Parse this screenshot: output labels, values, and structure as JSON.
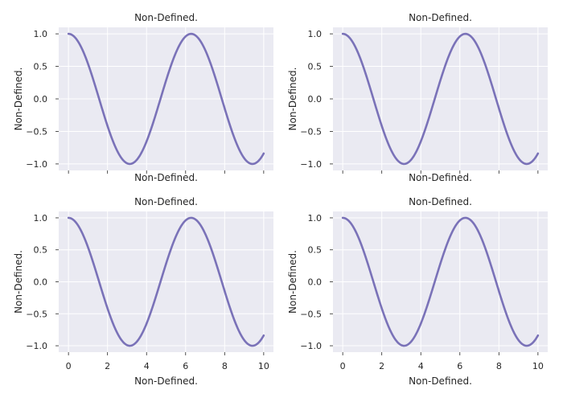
{
  "chart_data": [
    {
      "type": "line",
      "title": "Non-Defined.",
      "xlabel": "Non-Defined.",
      "ylabel": "Non-Defined.",
      "xlim": [
        -0.5,
        10.5
      ],
      "ylim": [
        -1.1,
        1.1
      ],
      "xticks": [
        0,
        2,
        4,
        6,
        8,
        10
      ],
      "yticks": [
        1.0,
        0.5,
        0.0,
        -0.5,
        -1.0
      ],
      "yticklabels": [
        "1.0",
        "0.5",
        "0.0",
        "−0.5",
        "−1.0"
      ],
      "show_xticklabels": false,
      "show_xlabel": true,
      "grid": true,
      "series": [
        {
          "function": "cos(x)",
          "x_range": [
            0,
            10
          ],
          "color": "#7A72B8",
          "x": [
            0,
            0.5,
            1,
            1.5,
            2,
            2.5,
            3,
            3.5,
            4,
            4.5,
            5,
            5.5,
            6,
            6.5,
            7,
            7.5,
            8,
            8.5,
            9,
            9.5,
            10
          ],
          "y": [
            1.0,
            0.878,
            0.54,
            0.071,
            -0.416,
            -0.801,
            -0.99,
            -0.936,
            -0.654,
            -0.211,
            0.284,
            0.709,
            0.96,
            0.977,
            0.754,
            0.347,
            -0.146,
            -0.602,
            -0.911,
            -0.997,
            -0.839
          ]
        }
      ]
    },
    {
      "type": "line",
      "title": "Non-Defined.",
      "xlabel": "Non-Defined.",
      "ylabel": "Non-Defined.",
      "xlim": [
        -0.5,
        10.5
      ],
      "ylim": [
        -1.1,
        1.1
      ],
      "xticks": [
        0,
        2,
        4,
        6,
        8,
        10
      ],
      "yticks": [
        1.0,
        0.5,
        0.0,
        -0.5,
        -1.0
      ],
      "yticklabels": [
        "1.0",
        "0.5",
        "0.0",
        "−0.5",
        "−1.0"
      ],
      "show_xticklabels": false,
      "show_xlabel": true,
      "grid": true,
      "series": [
        {
          "function": "cos(x)",
          "x_range": [
            0,
            10
          ],
          "color": "#7A72B8",
          "x": [
            0,
            0.5,
            1,
            1.5,
            2,
            2.5,
            3,
            3.5,
            4,
            4.5,
            5,
            5.5,
            6,
            6.5,
            7,
            7.5,
            8,
            8.5,
            9,
            9.5,
            10
          ],
          "y": [
            1.0,
            0.878,
            0.54,
            0.071,
            -0.416,
            -0.801,
            -0.99,
            -0.936,
            -0.654,
            -0.211,
            0.284,
            0.709,
            0.96,
            0.977,
            0.754,
            0.347,
            -0.146,
            -0.602,
            -0.911,
            -0.997,
            -0.839
          ]
        }
      ]
    },
    {
      "type": "line",
      "title": "Non-Defined.",
      "xlabel": "Non-Defined.",
      "ylabel": "Non-Defined.",
      "xlim": [
        -0.5,
        10.5
      ],
      "ylim": [
        -1.1,
        1.1
      ],
      "xticks": [
        0,
        2,
        4,
        6,
        8,
        10
      ],
      "xticklabels": [
        "0",
        "2",
        "4",
        "6",
        "8",
        "10"
      ],
      "yticks": [
        1.0,
        0.5,
        0.0,
        -0.5,
        -1.0
      ],
      "yticklabels": [
        "1.0",
        "0.5",
        "0.0",
        "−0.5",
        "−1.0"
      ],
      "show_xticklabels": true,
      "show_xlabel": true,
      "grid": true,
      "series": [
        {
          "function": "cos(x)",
          "x_range": [
            0,
            10
          ],
          "color": "#7A72B8",
          "x": [
            0,
            0.5,
            1,
            1.5,
            2,
            2.5,
            3,
            3.5,
            4,
            4.5,
            5,
            5.5,
            6,
            6.5,
            7,
            7.5,
            8,
            8.5,
            9,
            9.5,
            10
          ],
          "y": [
            1.0,
            0.878,
            0.54,
            0.071,
            -0.416,
            -0.801,
            -0.99,
            -0.936,
            -0.654,
            -0.211,
            0.284,
            0.709,
            0.96,
            0.977,
            0.754,
            0.347,
            -0.146,
            -0.602,
            -0.911,
            -0.997,
            -0.839
          ]
        }
      ]
    },
    {
      "type": "line",
      "title": "Non-Defined.",
      "xlabel": "Non-Defined.",
      "ylabel": "Non-Defined.",
      "xlim": [
        -0.5,
        10.5
      ],
      "ylim": [
        -1.1,
        1.1
      ],
      "xticks": [
        0,
        2,
        4,
        6,
        8,
        10
      ],
      "xticklabels": [
        "0",
        "2",
        "4",
        "6",
        "8",
        "10"
      ],
      "yticks": [
        1.0,
        0.5,
        0.0,
        -0.5,
        -1.0
      ],
      "yticklabels": [
        "1.0",
        "0.5",
        "0.0",
        "−0.5",
        "−1.0"
      ],
      "show_xticklabels": true,
      "show_xlabel": true,
      "grid": true,
      "series": [
        {
          "function": "cos(x)",
          "x_range": [
            0,
            10
          ],
          "color": "#7A72B8",
          "x": [
            0,
            0.5,
            1,
            1.5,
            2,
            2.5,
            3,
            3.5,
            4,
            4.5,
            5,
            5.5,
            6,
            6.5,
            7,
            7.5,
            8,
            8.5,
            9,
            9.5,
            10
          ],
          "y": [
            1.0,
            0.878,
            0.54,
            0.071,
            -0.416,
            -0.801,
            -0.99,
            -0.936,
            -0.654,
            -0.211,
            0.284,
            0.709,
            0.96,
            0.977,
            0.754,
            0.347,
            -0.146,
            -0.602,
            -0.911,
            -0.997,
            -0.839
          ]
        }
      ]
    }
  ]
}
